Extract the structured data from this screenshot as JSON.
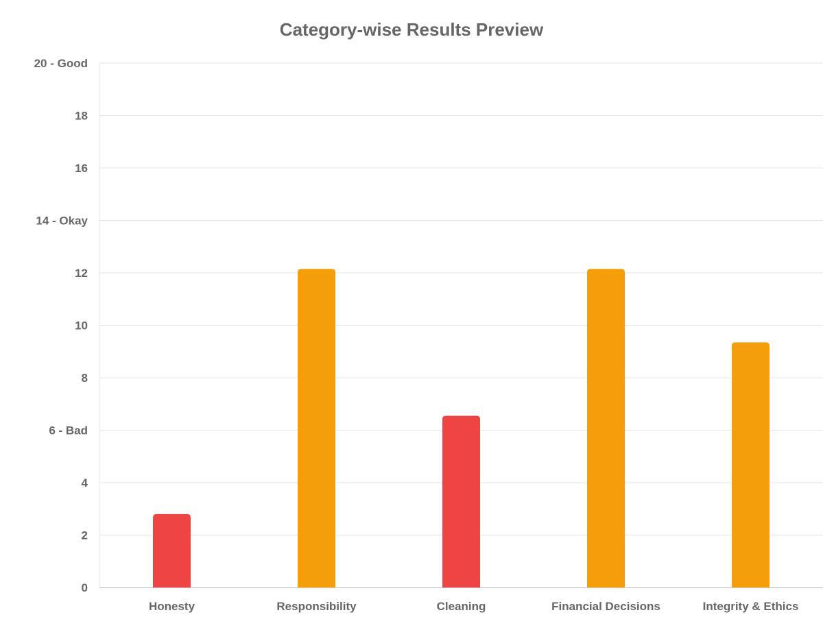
{
  "chart_data": {
    "type": "bar",
    "title": "Category-wise Results Preview",
    "xlabel": "",
    "ylabel": "",
    "categories": [
      "Honesty",
      "Responsibility",
      "Cleaning",
      "Financial Decisions",
      "Integrity & Ethics"
    ],
    "values": [
      2.8,
      12.15,
      6.55,
      12.15,
      9.35
    ],
    "bar_colors": [
      "#ef4444",
      "#f59e0b",
      "#ef4444",
      "#f59e0b",
      "#f59e0b"
    ],
    "ylim": [
      0,
      20
    ],
    "yticks": [
      {
        "value": 0,
        "label": "0"
      },
      {
        "value": 2,
        "label": "2"
      },
      {
        "value": 4,
        "label": "4"
      },
      {
        "value": 6,
        "label": "6 - Bad"
      },
      {
        "value": 8,
        "label": "8"
      },
      {
        "value": 10,
        "label": "10"
      },
      {
        "value": 12,
        "label": "12"
      },
      {
        "value": 14,
        "label": "14 - Okay"
      },
      {
        "value": 16,
        "label": "16"
      },
      {
        "value": 18,
        "label": "18"
      },
      {
        "value": 20,
        "label": "20 - Good"
      }
    ],
    "grid": true,
    "legend": "none"
  }
}
